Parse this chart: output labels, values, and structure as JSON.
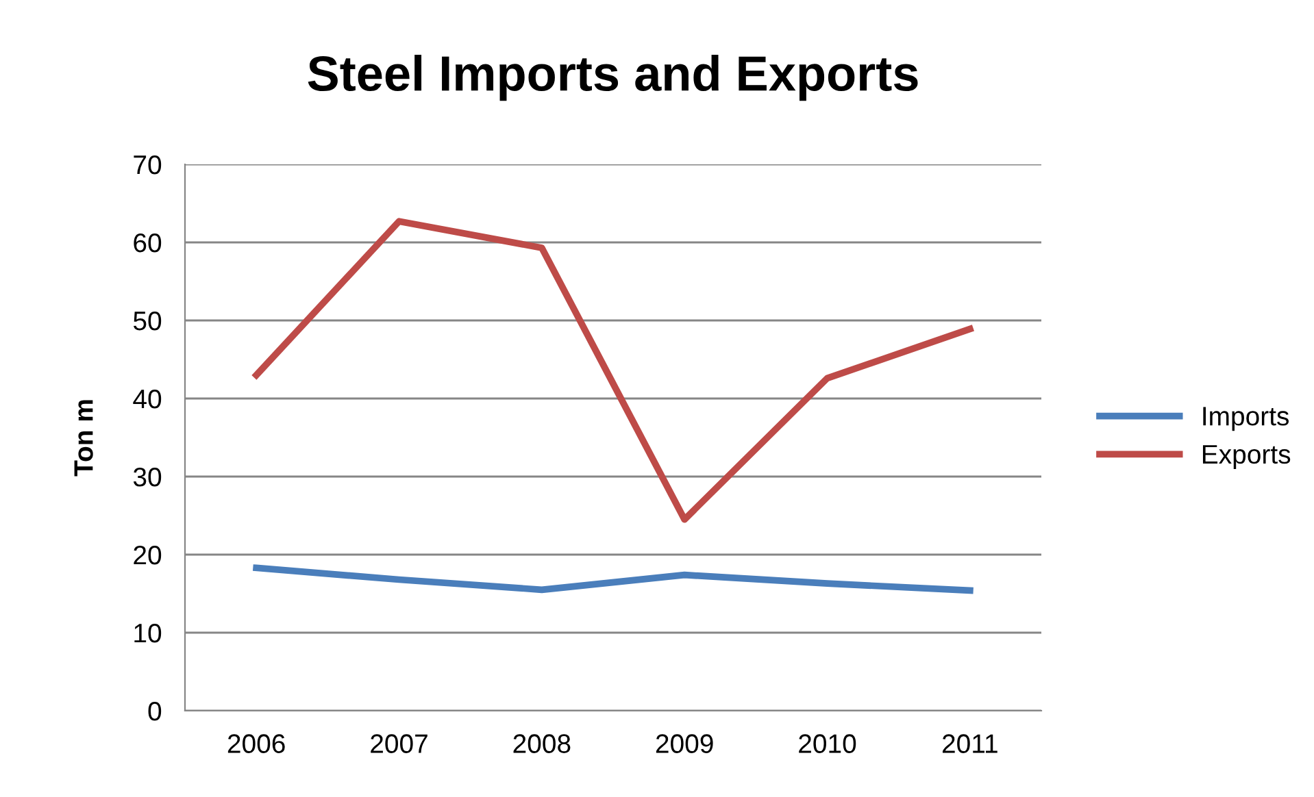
{
  "chart_data": {
    "type": "line",
    "title": "Steel Imports and Exports",
    "ylabel": "Ton m",
    "categories": [
      "2006",
      "2007",
      "2008",
      "2009",
      "2010",
      "2011"
    ],
    "series": [
      {
        "name": "Imports",
        "color": "#4a7ebb",
        "values": [
          18.3,
          16.8,
          15.5,
          17.4,
          16.3,
          15.4
        ]
      },
      {
        "name": "Exports",
        "color": "#be4b48",
        "values": [
          43.0,
          62.7,
          59.3,
          24.5,
          42.6,
          48.9
        ]
      }
    ],
    "ylim": [
      0,
      70
    ],
    "yticks": [
      0,
      10,
      20,
      30,
      40,
      50,
      60,
      70
    ],
    "grid": "y",
    "legend": "right",
    "marker": "none",
    "line_style": "solid"
  }
}
